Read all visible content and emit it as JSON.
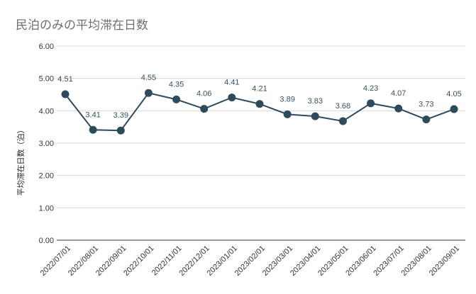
{
  "chart_data": {
    "type": "line",
    "title": "民泊のみの平均滞在日数",
    "xlabel": "",
    "ylabel": "平均滞在日数（泊）",
    "categories": [
      "2022/07/01",
      "2022/08/01",
      "2022/09/01",
      "2022/10/01",
      "2022/11/01",
      "2022/12/01",
      "2023/01/01",
      "2023/02/01",
      "2023/03/01",
      "2023/04/01",
      "2023/05/01",
      "2023/06/01",
      "2023/07/01",
      "2023/08/01",
      "2023/09/01"
    ],
    "series": [
      {
        "values": [
          4.51,
          3.41,
          3.39,
          4.55,
          4.35,
          4.06,
          4.41,
          4.21,
          3.89,
          3.83,
          3.68,
          4.23,
          4.07,
          3.73,
          4.05
        ],
        "labels": [
          "4.51",
          "3.41",
          "3.39",
          "4.55",
          "4.35",
          "4.06",
          "4.41",
          "4.21",
          "3.89",
          "3.83",
          "3.68",
          "4.23",
          "4.07",
          "3.73",
          "4.05"
        ]
      }
    ],
    "ylim": [
      0,
      6
    ],
    "yticks": [
      "0.00",
      "1.00",
      "2.00",
      "3.00",
      "4.00",
      "5.00",
      "6.00"
    ],
    "grid": true,
    "legend": "none",
    "colors": {
      "series": "#2e4b5c",
      "grid": "#d9d9d9",
      "title": "#6f6f6f"
    }
  }
}
